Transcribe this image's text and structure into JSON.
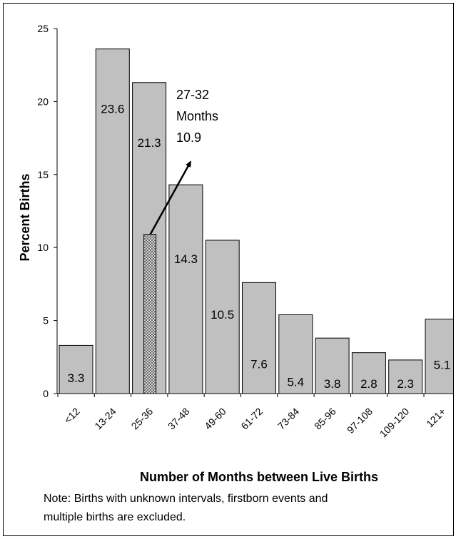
{
  "chart_data": {
    "type": "bar",
    "categories": [
      "<12",
      "13-24",
      "25-36",
      "37-48",
      "49-60",
      "61-72",
      "73-84",
      "85-96",
      "97-108",
      "109-120",
      "121+"
    ],
    "values": [
      3.3,
      23.6,
      21.3,
      14.3,
      10.5,
      7.6,
      5.4,
      3.8,
      2.8,
      2.3,
      5.1
    ],
    "data_labels": [
      "3.3",
      "23.6",
      "21.3",
      "14.3",
      "10.5",
      "7.6",
      "5.4",
      "3.8",
      "2.8",
      "2.3",
      "5.1"
    ],
    "ylabel": "Percent Births",
    "xlabel": "Number of Months between Live Births",
    "ylim": [
      0,
      25
    ],
    "yticks": [
      "0",
      "5",
      "10",
      "15",
      "20",
      "25"
    ],
    "grid": false,
    "colors": {
      "bar_fill": "#c0c0c0",
      "bar_stroke": "#000000",
      "highlight_fill": "#d8d8d8"
    },
    "highlight": {
      "category": "25-36",
      "value": 10.9,
      "annotation": [
        "27-32",
        "Months",
        "10.9"
      ]
    }
  },
  "note": {
    "line1": "Note: Births with unknown intervals, firstborn events and",
    "line2": "multiple births are excluded."
  }
}
